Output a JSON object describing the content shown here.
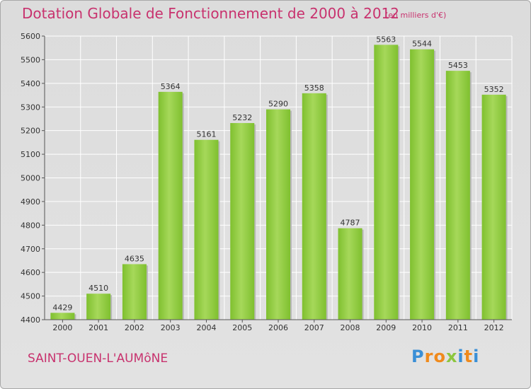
{
  "header": {
    "title": "Dotation Globale de Fonctionnement de 2000 à 2012",
    "unit": "(en milliers d'€)"
  },
  "footer": {
    "commune": "SAINT-OUEN-L'AUMôNE",
    "logo_letters": [
      "P",
      "r",
      "o",
      "x",
      "i",
      "t",
      "i"
    ],
    "logo_colors": [
      "#3a8fd6",
      "#f08a1c",
      "#f08a1c",
      "#8cc63f",
      "#3a8fd6",
      "#f08a1c",
      "#3a8fd6"
    ]
  },
  "chart_data": {
    "type": "bar",
    "categories": [
      "2000",
      "2001",
      "2002",
      "2003",
      "2004",
      "2005",
      "2006",
      "2007",
      "2008",
      "2009",
      "2010",
      "2011",
      "2012"
    ],
    "values": [
      4429,
      4510,
      4635,
      5364,
      5161,
      5232,
      5290,
      5358,
      4787,
      5563,
      5544,
      5453,
      5352
    ],
    "ylim": [
      4400,
      5600
    ],
    "yticks": [
      4400,
      4500,
      4600,
      4700,
      4800,
      4900,
      5000,
      5100,
      5200,
      5300,
      5400,
      5500,
      5600
    ],
    "grid": true,
    "bar_color": "#7fc02f",
    "bar_color_light": "#a6d85a"
  }
}
